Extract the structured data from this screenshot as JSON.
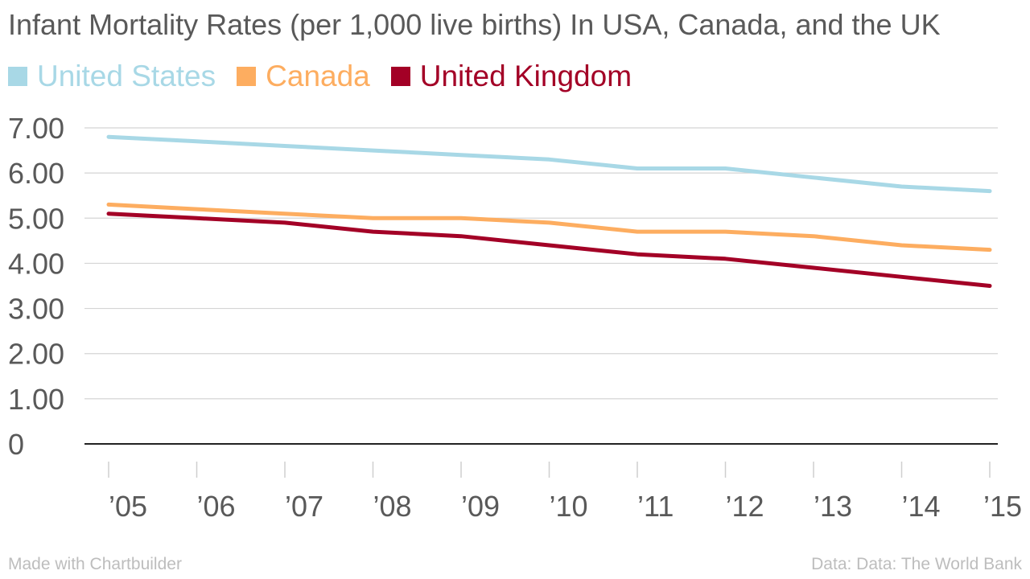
{
  "chart_data": {
    "type": "line",
    "title": "Infant Mortality Rates (per 1,000 live births) In USA, Canada, and the UK",
    "x": [
      "2005",
      "2006",
      "2007",
      "2008",
      "2009",
      "2010",
      "2011",
      "2012",
      "2013",
      "2014",
      "2015"
    ],
    "x_tick_labels": [
      "’05",
      "’06",
      "’07",
      "’08",
      "’09",
      "’10",
      "’11",
      "’12",
      "’13",
      "’14",
      "’15"
    ],
    "y_tick_labels": [
      "0",
      "1.00",
      "2.00",
      "3.00",
      "4.00",
      "5.00",
      "6.00",
      "7.00"
    ],
    "ylim": [
      0,
      7
    ],
    "grid": true,
    "legend_position": "top-left",
    "series": [
      {
        "name": "United States",
        "color": "#a8d8e6",
        "values": [
          6.8,
          6.7,
          6.6,
          6.5,
          6.4,
          6.3,
          6.1,
          6.1,
          5.9,
          5.7,
          5.6
        ]
      },
      {
        "name": "Canada",
        "color": "#fdad60",
        "values": [
          5.3,
          5.2,
          5.1,
          5.0,
          5.0,
          4.9,
          4.7,
          4.7,
          4.6,
          4.4,
          4.3
        ]
      },
      {
        "name": "United Kingdom",
        "color": "#a30026",
        "values": [
          5.1,
          5.0,
          4.9,
          4.7,
          4.6,
          4.4,
          4.2,
          4.1,
          3.9,
          3.7,
          3.5
        ]
      }
    ]
  },
  "footer": {
    "credit": "Made with Chartbuilder",
    "source": "Data: Data: The World Bank"
  }
}
